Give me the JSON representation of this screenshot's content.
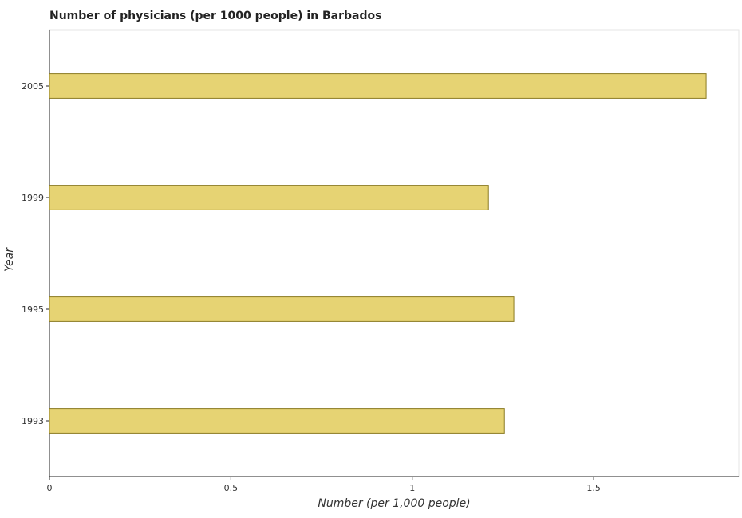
{
  "chart_data": {
    "type": "bar",
    "orientation": "horizontal",
    "title": "Number of physicians (per 1000 people) in Barbados",
    "xlabel": "Number (per 1,000 people)",
    "ylabel": "Year",
    "categories": [
      "1993",
      "1995",
      "1999",
      "2005"
    ],
    "values": [
      1.254,
      1.28,
      1.21,
      1.81
    ],
    "xlim": [
      0,
      1.9
    ],
    "xticks": [
      0,
      0.5,
      1,
      1.5
    ],
    "xtick_labels": [
      "0",
      "0.5",
      "1",
      "1.5"
    ],
    "grid": false,
    "legend": "none",
    "colors": {
      "bar_fill": "#e6d373",
      "bar_stroke": "#8a7a20",
      "axis": "#222222"
    }
  }
}
